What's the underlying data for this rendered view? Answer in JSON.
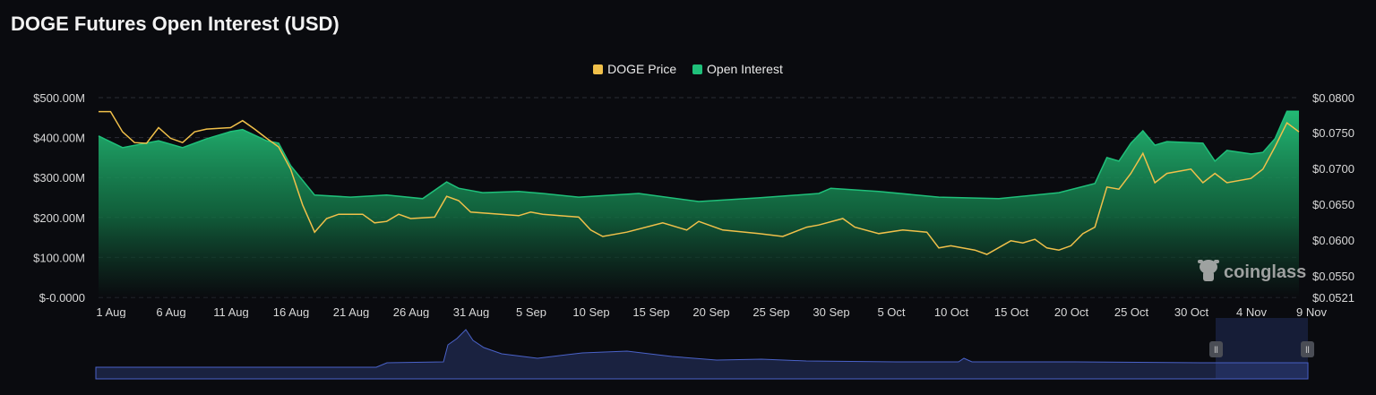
{
  "title": "DOGE Futures Open Interest (USD)",
  "watermark": "coinglass",
  "colors": {
    "price": "#f0c04a",
    "open_interest": "#1fc07a",
    "background": "#0a0b0f",
    "navigator": "#4a62c8"
  },
  "chart_data": {
    "type": "area",
    "title": "DOGE Futures Open Interest (USD)",
    "legend_position": "top-center",
    "grid": true,
    "x_ticks": [
      "1 Aug",
      "6 Aug",
      "11 Aug",
      "16 Aug",
      "21 Aug",
      "26 Aug",
      "31 Aug",
      "5 Sep",
      "10 Sep",
      "15 Sep",
      "20 Sep",
      "25 Sep",
      "30 Sep",
      "5 Oct",
      "10 Oct",
      "15 Oct",
      "20 Oct",
      "25 Oct",
      "30 Oct",
      "4 Nov",
      "9 Nov"
    ],
    "y_left_ticks": [
      "$-0.0000",
      "$100.00M",
      "$200.00M",
      "$300.00M",
      "$400.00M",
      "$500.00M"
    ],
    "y_left_range": [
      0,
      500
    ],
    "y_right_ticks": [
      "$0.0521",
      "$0.0550",
      "$0.0600",
      "$0.0650",
      "$0.0700",
      "$0.0750",
      "$0.0800"
    ],
    "y_right_range": [
      0.0521,
      0.08
    ],
    "series": [
      {
        "name": "Open Interest",
        "axis": "left",
        "unit": "USD millions",
        "points": [
          [
            "1 Aug",
            404
          ],
          [
            "3 Aug",
            375
          ],
          [
            "6 Aug",
            392
          ],
          [
            "8 Aug",
            375
          ],
          [
            "10 Aug",
            397
          ],
          [
            "12 Aug",
            415
          ],
          [
            "13 Aug",
            420
          ],
          [
            "15 Aug",
            392
          ],
          [
            "16 Aug",
            386
          ],
          [
            "17 Aug",
            330
          ],
          [
            "19 Aug",
            256
          ],
          [
            "22 Aug",
            251
          ],
          [
            "25 Aug",
            256
          ],
          [
            "28 Aug",
            247
          ],
          [
            "30 Aug",
            289
          ],
          [
            "31 Aug",
            273
          ],
          [
            "2 Sep",
            262
          ],
          [
            "5 Sep",
            265
          ],
          [
            "7 Sep",
            260
          ],
          [
            "10 Sep",
            251
          ],
          [
            "15 Sep",
            260
          ],
          [
            "20 Sep",
            240
          ],
          [
            "25 Sep",
            249
          ],
          [
            "30 Sep",
            260
          ],
          [
            "1 Oct",
            273
          ],
          [
            "5 Oct",
            265
          ],
          [
            "10 Oct",
            251
          ],
          [
            "15 Oct",
            247
          ],
          [
            "20 Oct",
            262
          ],
          [
            "23 Oct",
            285
          ],
          [
            "24 Oct",
            350
          ],
          [
            "25 Oct",
            341
          ],
          [
            "26 Oct",
            386
          ],
          [
            "27 Oct",
            417
          ],
          [
            "28 Oct",
            381
          ],
          [
            "29 Oct",
            390
          ],
          [
            "1 Nov",
            386
          ],
          [
            "2 Nov",
            341
          ],
          [
            "3 Nov",
            368
          ],
          [
            "5 Nov",
            359
          ],
          [
            "6 Nov",
            363
          ],
          [
            "7 Nov",
            397
          ],
          [
            "8 Nov",
            466
          ],
          [
            "9 Nov",
            466
          ]
        ]
      },
      {
        "name": "DOGE Price",
        "axis": "right",
        "unit": "USD",
        "points": [
          [
            "1 Aug",
            0.078
          ],
          [
            "2 Aug",
            0.078
          ],
          [
            "3 Aug",
            0.0751
          ],
          [
            "4 Aug",
            0.0736
          ],
          [
            "5 Aug",
            0.0735
          ],
          [
            "6 Aug",
            0.0757
          ],
          [
            "7 Aug",
            0.0742
          ],
          [
            "8 Aug",
            0.0736
          ],
          [
            "9 Aug",
            0.0751
          ],
          [
            "10 Aug",
            0.0755
          ],
          [
            "12 Aug",
            0.0757
          ],
          [
            "13 Aug",
            0.0767
          ],
          [
            "14 Aug",
            0.0755
          ],
          [
            "15 Aug",
            0.0742
          ],
          [
            "16 Aug",
            0.073
          ],
          [
            "17 Aug",
            0.0699
          ],
          [
            "18 Aug",
            0.0649
          ],
          [
            "19 Aug",
            0.0611
          ],
          [
            "20 Aug",
            0.063
          ],
          [
            "21 Aug",
            0.0636
          ],
          [
            "23 Aug",
            0.0636
          ],
          [
            "24 Aug",
            0.0624
          ],
          [
            "25 Aug",
            0.0626
          ],
          [
            "26 Aug",
            0.0636
          ],
          [
            "27 Aug",
            0.063
          ],
          [
            "29 Aug",
            0.0632
          ],
          [
            "30 Aug",
            0.0661
          ],
          [
            "31 Aug",
            0.0655
          ],
          [
            "1 Sep",
            0.0639
          ],
          [
            "5 Sep",
            0.0634
          ],
          [
            "6 Sep",
            0.0639
          ],
          [
            "7 Sep",
            0.0636
          ],
          [
            "10 Sep",
            0.0632
          ],
          [
            "11 Sep",
            0.0614
          ],
          [
            "12 Sep",
            0.0605
          ],
          [
            "14 Sep",
            0.0611
          ],
          [
            "17 Sep",
            0.0624
          ],
          [
            "19 Sep",
            0.0614
          ],
          [
            "20 Sep",
            0.0626
          ],
          [
            "22 Sep",
            0.0614
          ],
          [
            "25 Sep",
            0.0609
          ],
          [
            "27 Sep",
            0.0605
          ],
          [
            "29 Sep",
            0.0618
          ],
          [
            "30 Sep",
            0.0621
          ],
          [
            "2 Oct",
            0.063
          ],
          [
            "3 Oct",
            0.0618
          ],
          [
            "5 Oct",
            0.0609
          ],
          [
            "7 Oct",
            0.0614
          ],
          [
            "9 Oct",
            0.0611
          ],
          [
            "10 Oct",
            0.0589
          ],
          [
            "11 Oct",
            0.0592
          ],
          [
            "13 Oct",
            0.0586
          ],
          [
            "14 Oct",
            0.058
          ],
          [
            "16 Oct",
            0.0599
          ],
          [
            "17 Oct",
            0.0596
          ],
          [
            "18 Oct",
            0.0601
          ],
          [
            "19 Oct",
            0.0589
          ],
          [
            "20 Oct",
            0.0586
          ],
          [
            "21 Oct",
            0.0592
          ],
          [
            "22 Oct",
            0.0609
          ],
          [
            "23 Oct",
            0.0618
          ],
          [
            "24 Oct",
            0.0674
          ],
          [
            "25 Oct",
            0.0671
          ],
          [
            "26 Oct",
            0.0693
          ],
          [
            "27 Oct",
            0.0721
          ],
          [
            "28 Oct",
            0.068
          ],
          [
            "29 Oct",
            0.0693
          ],
          [
            "31 Oct",
            0.0699
          ],
          [
            "1 Nov",
            0.068
          ],
          [
            "2 Nov",
            0.0693
          ],
          [
            "3 Nov",
            0.068
          ],
          [
            "5 Nov",
            0.0686
          ],
          [
            "6 Nov",
            0.0699
          ],
          [
            "7 Nov",
            0.073
          ],
          [
            "8 Nov",
            0.0764
          ],
          [
            "9 Nov",
            0.0751
          ]
        ]
      }
    ]
  }
}
